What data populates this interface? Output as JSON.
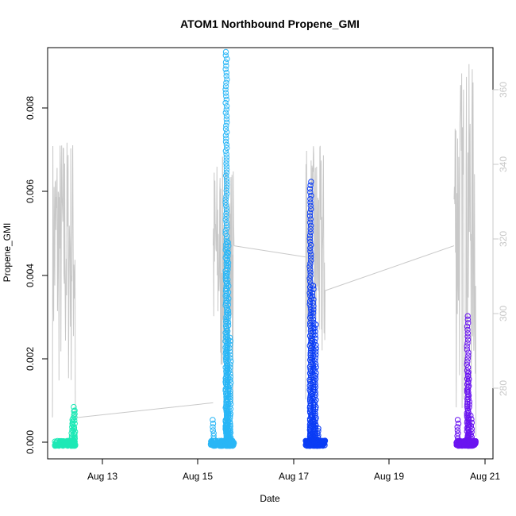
{
  "chart_data": {
    "type": "scatter",
    "title": "ATOM1 Northbound Propene_GMI",
    "xlabel": "Date",
    "ylabel": "Propene_GMI",
    "x_ticks": [
      "Aug 13",
      "Aug 15",
      "Aug 17",
      "Aug 19",
      "Aug 21"
    ],
    "y_ticks": [
      "0.000",
      "0.002",
      "0.004",
      "0.006",
      "0.008"
    ],
    "y2_ticks": [
      "280",
      "300",
      "320",
      "340",
      "360"
    ],
    "xlim_days": [
      12.05,
      21.2
    ],
    "ylim": [
      -0.0003,
      0.0092
    ],
    "y2lim": [
      259,
      369
    ],
    "colors": {
      "axis": "#000000",
      "secondary_line": "#c8c8c8",
      "secondary_axis": "#c8c8c8"
    },
    "scatter_series": [
      {
        "color": "#1de9b6",
        "x_range": [
          12.2,
          12.62
        ],
        "bursts": [
          [
            12.55,
            0.0006
          ],
          [
            12.58,
            0.0008
          ],
          [
            12.6,
            0.0009
          ]
        ],
        "base": 0.0
      },
      {
        "color": "#29b6f6",
        "x_range": [
          15.4,
          15.88
        ],
        "bursts": [
          [
            15.72,
            0.0091
          ],
          [
            15.75,
            0.0047
          ],
          [
            15.8,
            0.0025
          ],
          [
            15.45,
            0.0006
          ]
        ],
        "base": 0.0
      },
      {
        "color": "#0a3cf5",
        "x_range": [
          17.35,
          17.75
        ],
        "bursts": [
          [
            17.45,
            0.0061
          ],
          [
            17.5,
            0.0037
          ],
          [
            17.55,
            0.0028
          ],
          [
            17.6,
            0.0004
          ]
        ],
        "base": 0.0
      },
      {
        "color": "#6a14f0",
        "x_range": [
          20.45,
          20.85
        ],
        "bursts": [
          [
            20.68,
            0.003
          ],
          [
            20.7,
            0.0017
          ],
          [
            20.75,
            0.0007
          ],
          [
            20.48,
            0.0006
          ]
        ],
        "base": 0.0
      }
    ],
    "secondary_line_segments": [
      {
        "x_range": [
          12.15,
          12.62
        ],
        "y2_min": 270,
        "y2_max": 347,
        "end": 270
      },
      {
        "x_range": [
          15.45,
          15.88
        ],
        "y2_min": 273,
        "y2_max": 340,
        "end": 316
      },
      {
        "x_range": [
          17.35,
          17.75
        ],
        "y2_min": 270,
        "y2_max": 343,
        "end": 304
      },
      {
        "x_range": [
          20.4,
          20.85
        ],
        "y2_min": 265,
        "y2_max": 365,
        "end": 265
      }
    ],
    "secondary_line_connectors": [
      [
        [
          12.62,
          270
        ],
        [
          15.45,
          274
        ]
      ],
      [
        [
          15.88,
          316
        ],
        [
          17.35,
          313
        ]
      ],
      [
        [
          17.75,
          304
        ],
        [
          20.4,
          316
        ]
      ]
    ]
  }
}
